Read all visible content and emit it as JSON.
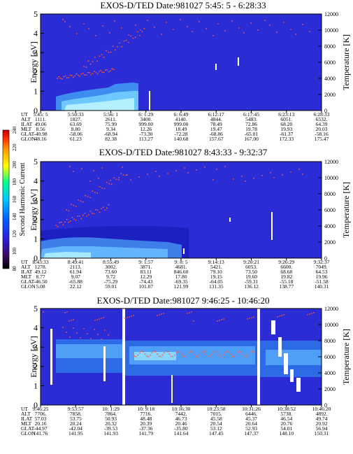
{
  "colorbar": {
    "label": "Second Harmonic Current",
    "ticks": [
      "80",
      "100",
      "120",
      "140",
      "160",
      "180",
      "200",
      "220",
      "240"
    ],
    "colors": [
      "#000000",
      "#3c0a68",
      "#2a1ee0",
      "#0060ff",
      "#00c8ff",
      "#00ff90",
      "#ffff00",
      "#ff9a00",
      "#ff2000",
      "#c00000"
    ]
  },
  "chart_data": [
    {
      "type": "heatmap",
      "title": "EXOS-D/TED   Date:981027  5:45: 5 - 6:28:33",
      "ylabel": "Energy [eV]",
      "y2label": "Temperature [K]",
      "ylim": [
        0,
        5
      ],
      "y2lim": [
        0,
        12000
      ],
      "yticks": [
        "0",
        "1",
        "2",
        "3",
        "4",
        "5"
      ],
      "y2ticks": [
        "0",
        "2000",
        "4000",
        "6000",
        "8000",
        "10000",
        "12000"
      ],
      "row_labels": [
        "UT",
        "ALT",
        "ILAT",
        "MLT",
        "GLAT",
        "GLON"
      ],
      "columns": [
        [
          "5:45: 5",
          "1111.",
          "49.06",
          "8.56",
          "-40.98",
          "48.16"
        ],
        [
          "5:50:33",
          "1827.",
          "63.69",
          "8.80",
          "-58.06",
          "61.23"
        ],
        [
          "5:56: 1",
          "2611.",
          "75.99",
          "9.34",
          "-68.94",
          "82.38"
        ],
        [
          "6: 1:29",
          "3400.",
          "999.00",
          "12.26",
          "-73.30",
          "113.27"
        ],
        [
          "6: 6:49",
          "4140.",
          "999.00",
          "18.49",
          "-72.28",
          "140.68"
        ],
        [
          "6:12:17",
          "4844.",
          "78.49",
          "19.47",
          "-68.86",
          "157.67"
        ],
        [
          "6:17:45",
          "5483.",
          "72.86",
          "19.78",
          "-65.01",
          "167.00"
        ],
        [
          "6:23:13",
          "6051.",
          "68.20",
          "19.93",
          "-61.37",
          "172.33"
        ],
        [
          "6:28:33",
          "6532.",
          "64.39",
          "20.03",
          "-58.16",
          "175.47"
        ]
      ]
    },
    {
      "type": "heatmap",
      "title": "EXOS-D/TED   Date:981027  8:43:33 - 9:32:37",
      "ylabel": "Energy [eV]",
      "y2label": "Temperature [K]",
      "ylim": [
        0,
        5
      ],
      "y2lim": [
        0,
        12000
      ],
      "yticks": [
        "0",
        "1",
        "2",
        "3",
        "4",
        "5"
      ],
      "y2ticks": [
        "0",
        "2000",
        "4000",
        "6000",
        "8000",
        "10000",
        "12000"
      ],
      "row_labels": [
        "UT",
        "ALT",
        "ILAT",
        "MLT",
        "GLAT",
        "GLON"
      ],
      "columns": [
        [
          "8:43:33",
          "1278.",
          "49.12",
          "8.77",
          "-46.50",
          "5.08"
        ],
        [
          "8:49:41",
          "2113.",
          "61.94",
          "9.07",
          "-65.88",
          "22.12"
        ],
        [
          "8:55:49",
          "3002.",
          "73.60",
          "9.72",
          "-75.29",
          "59.01"
        ],
        [
          "9: 1:57",
          "3871.",
          "83.11",
          "12.29",
          "-74.43",
          "101.07"
        ],
        [
          "9: 8: 5",
          "4681.",
          "846.60",
          "17.80",
          "-69.35",
          "121.99"
        ],
        [
          "9:14:13",
          "5421.",
          "79.10",
          "19.15",
          "-64.05",
          "131.35"
        ],
        [
          "9:20:21",
          "6053.",
          "73.50",
          "19.60",
          "-59.31",
          "136.12"
        ],
        [
          "9:26:29",
          "6600.",
          "68.68",
          "19.82",
          "-55.18",
          "138.77"
        ],
        [
          "9:32:37",
          "7049.",
          "64.53",
          "19.96",
          "-51.58",
          "140.31"
        ]
      ]
    },
    {
      "type": "heatmap",
      "title": "EXOS-D/TED   Date:981027  9:46:25 - 10:46:20",
      "ylabel": "Energy [eV]",
      "y2label": "Temperature [K]",
      "ylim": [
        0,
        5
      ],
      "y2lim": [
        0,
        12000
      ],
      "yticks": [
        "0",
        "1",
        "2",
        "3",
        "4",
        "5"
      ],
      "y2ticks": [
        "0",
        "2000",
        "4000",
        "6000",
        "8000",
        "10000",
        "12000"
      ],
      "row_labels": [
        "UT",
        "ALT",
        "ILAT",
        "MLT",
        "GLAT",
        "GLON"
      ],
      "columns": [
        [
          "9:46:25",
          "7706.",
          "57.03",
          "20.16",
          "-44.97",
          "141.76"
        ],
        [
          "9:53:57",
          "7858.",
          "53.75",
          "20.24",
          "-42.04",
          "141.95"
        ],
        [
          "10: 1:29",
          "7864.",
          "50.93",
          "20.32",
          "-39.53",
          "141.93"
        ],
        [
          "10: 9:18",
          "7716.",
          "48.48",
          "20.39",
          "-37.36",
          "141.79"
        ],
        [
          "10:16:30",
          "7442.",
          "46.73",
          "20.46",
          "-35.80",
          "141.64"
        ],
        [
          "10:23:58",
          "7015.",
          "45.58",
          "20.54",
          "53.12",
          "147.45"
        ],
        [
          "10:31:26",
          "6446.",
          "45.37",
          "20.64",
          "52.93",
          "147.37"
        ],
        [
          "10:38:52",
          "5738.",
          "46.54",
          "20.76",
          "54.01",
          "148.10"
        ],
        [
          "10:46:20",
          "4892.",
          "49.74",
          "20.92",
          "56.94",
          "150.31"
        ]
      ]
    }
  ]
}
